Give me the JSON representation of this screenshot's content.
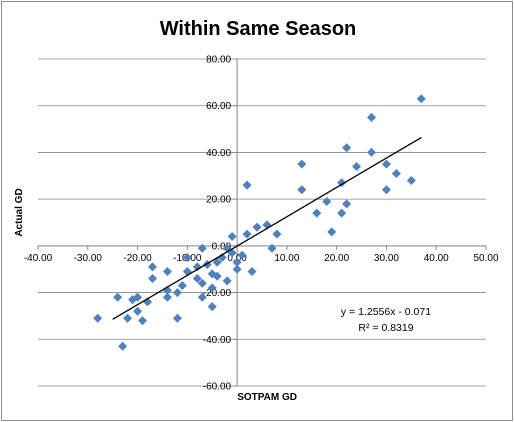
{
  "chart_data": {
    "type": "scatter",
    "title": "Within Same Season",
    "xlabel": "SOTPAM GD",
    "ylabel": "Actual GD",
    "xlim": [
      -40,
      50
    ],
    "ylim": [
      -60,
      80
    ],
    "x_ticks": [
      -40,
      -30,
      -20,
      -10,
      0,
      10,
      20,
      30,
      40,
      50
    ],
    "y_ticks": [
      80,
      60,
      40,
      20,
      0,
      -20,
      -40,
      -60
    ],
    "x_tick_labels": [
      "-40.00",
      "-30.00",
      "-20.00",
      "-10.00",
      "0.00",
      "10.00",
      "20.00",
      "30.00",
      "40.00",
      "50.00"
    ],
    "y_tick_labels": [
      "80.00",
      "60.00",
      "40.00",
      "20.00",
      "0.00",
      "-20.00",
      "-40.00",
      "-60.00"
    ],
    "grid": "horizontal",
    "legend": "none",
    "marker_color": "#4f81bd",
    "trendline": {
      "type": "linear",
      "slope": 1.2556,
      "intercept": -0.071,
      "x_range": [
        -25,
        37
      ],
      "color": "#000000",
      "equation_label": "y = 1.2556x - 0.071",
      "r2_label": "R² = 0.8319"
    },
    "points": [
      {
        "x": -28,
        "y": -31
      },
      {
        "x": -24,
        "y": -22
      },
      {
        "x": -23,
        "y": -43
      },
      {
        "x": -22,
        "y": -31
      },
      {
        "x": -21,
        "y": -23
      },
      {
        "x": -20,
        "y": -22
      },
      {
        "x": -20,
        "y": -28
      },
      {
        "x": -19,
        "y": -32
      },
      {
        "x": -18,
        "y": -24
      },
      {
        "x": -17,
        "y": -9
      },
      {
        "x": -17,
        "y": -14
      },
      {
        "x": -14,
        "y": -11
      },
      {
        "x": -14,
        "y": -19
      },
      {
        "x": -14,
        "y": -22
      },
      {
        "x": -12,
        "y": -31
      },
      {
        "x": -12,
        "y": -20
      },
      {
        "x": -11,
        "y": -17
      },
      {
        "x": -10,
        "y": -11
      },
      {
        "x": -10,
        "y": -5
      },
      {
        "x": -8,
        "y": -9
      },
      {
        "x": -8,
        "y": -14
      },
      {
        "x": -7,
        "y": -1
      },
      {
        "x": -7,
        "y": -16
      },
      {
        "x": -7,
        "y": -22
      },
      {
        "x": -6,
        "y": -8
      },
      {
        "x": -5,
        "y": -12
      },
      {
        "x": -5,
        "y": -18
      },
      {
        "x": -5,
        "y": -26
      },
      {
        "x": -4,
        "y": -7
      },
      {
        "x": -4,
        "y": -13
      },
      {
        "x": -3,
        "y": -5
      },
      {
        "x": -2,
        "y": -1
      },
      {
        "x": -2,
        "y": -15
      },
      {
        "x": -1,
        "y": 4
      },
      {
        "x": -1,
        "y": -3
      },
      {
        "x": 0,
        "y": -7
      },
      {
        "x": 0,
        "y": -10
      },
      {
        "x": 1,
        "y": -4
      },
      {
        "x": 2,
        "y": 5
      },
      {
        "x": 2,
        "y": 26
      },
      {
        "x": 3,
        "y": -11
      },
      {
        "x": 4,
        "y": 8
      },
      {
        "x": 6,
        "y": 9
      },
      {
        "x": 7,
        "y": -1
      },
      {
        "x": 8,
        "y": 5
      },
      {
        "x": 13,
        "y": 24
      },
      {
        "x": 13,
        "y": 35
      },
      {
        "x": 16,
        "y": 14
      },
      {
        "x": 18,
        "y": 19
      },
      {
        "x": 19,
        "y": 6
      },
      {
        "x": 21,
        "y": 27
      },
      {
        "x": 21,
        "y": 14
      },
      {
        "x": 22,
        "y": 18
      },
      {
        "x": 22,
        "y": 42
      },
      {
        "x": 24,
        "y": 34
      },
      {
        "x": 27,
        "y": 40
      },
      {
        "x": 27,
        "y": 55
      },
      {
        "x": 30,
        "y": 24
      },
      {
        "x": 30,
        "y": 35
      },
      {
        "x": 32,
        "y": 31
      },
      {
        "x": 35,
        "y": 28
      },
      {
        "x": 37,
        "y": 63
      }
    ]
  }
}
